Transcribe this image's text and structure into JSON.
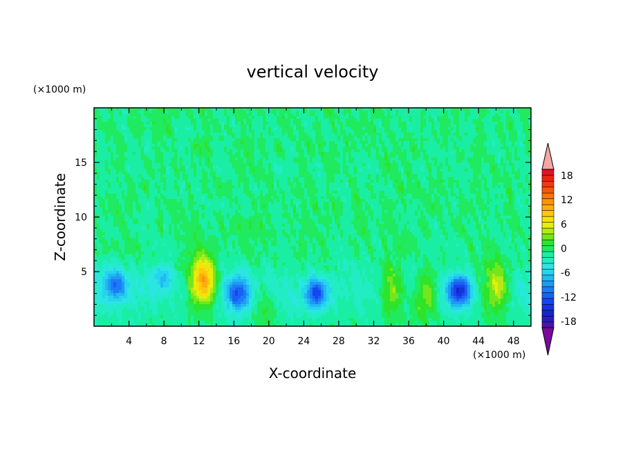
{
  "chart_data": {
    "type": "heatmap",
    "title": "vertical velocity",
    "xlabel": "X-coordinate",
    "ylabel": "Z-coordinate",
    "x_unit": "(×1000 m)",
    "y_unit": "(×1000 m)",
    "xlim": [
      0,
      50
    ],
    "ylim": [
      0,
      20
    ],
    "x_ticks": [
      "4",
      "8",
      "12",
      "16",
      "20",
      "24",
      "28",
      "32",
      "36",
      "40",
      "44",
      "48"
    ],
    "y_ticks": [
      "5",
      "10",
      "15"
    ],
    "colorbar": {
      "labels": [
        "18",
        "12",
        "6",
        "0",
        "-6",
        "-12",
        "-18"
      ],
      "levels": [
        -21,
        -19.5,
        -18,
        -16.5,
        -15,
        -13.5,
        -12,
        -10.5,
        -9,
        -7.5,
        -6,
        -4.5,
        -3,
        -1.5,
        0,
        1.5,
        3,
        4.5,
        6,
        7.5,
        9,
        10.5,
        12,
        13.5,
        15,
        16.5,
        18,
        19.5,
        21
      ],
      "colors": [
        "#7a0a99",
        "#4a14a8",
        "#2a1cb8",
        "#1626cc",
        "#1434de",
        "#1646ee",
        "#1a60f4",
        "#1c7cf6",
        "#1e9af4",
        "#22b8f0",
        "#26d4ee",
        "#2ae6e2",
        "#22ecc4",
        "#1aeea4",
        "#20ea60",
        "#2ee42a",
        "#74e61e",
        "#b4ea14",
        "#e6ee0a",
        "#f6e00c",
        "#fcc80c",
        "#fcae0c",
        "#fc920c",
        "#fa760c",
        "#f6560c",
        "#f03a0e",
        "#ea2214",
        "#e41226",
        "#f4a6a4"
      ]
    },
    "updrafts": [
      {
        "x": 12.5,
        "z": 4.0,
        "peak_w": 13
      },
      {
        "x": 34.0,
        "z": 3.2,
        "peak_w": 7
      },
      {
        "x": 37.8,
        "z": 2.8,
        "peak_w": 7
      },
      {
        "x": 46.0,
        "z": 3.5,
        "peak_w": 7
      },
      {
        "x": 19.5,
        "z": 2.0,
        "peak_w": 4
      }
    ],
    "downdrafts": [
      {
        "x": 2.5,
        "z": 3.8,
        "min_w": -8
      },
      {
        "x": 7.8,
        "z": 4.5,
        "min_w": -6
      },
      {
        "x": 16.5,
        "z": 3.0,
        "min_w": -9
      },
      {
        "x": 25.5,
        "z": 3.0,
        "min_w": -11
      },
      {
        "x": 41.8,
        "z": 3.2,
        "min_w": -13
      }
    ]
  }
}
